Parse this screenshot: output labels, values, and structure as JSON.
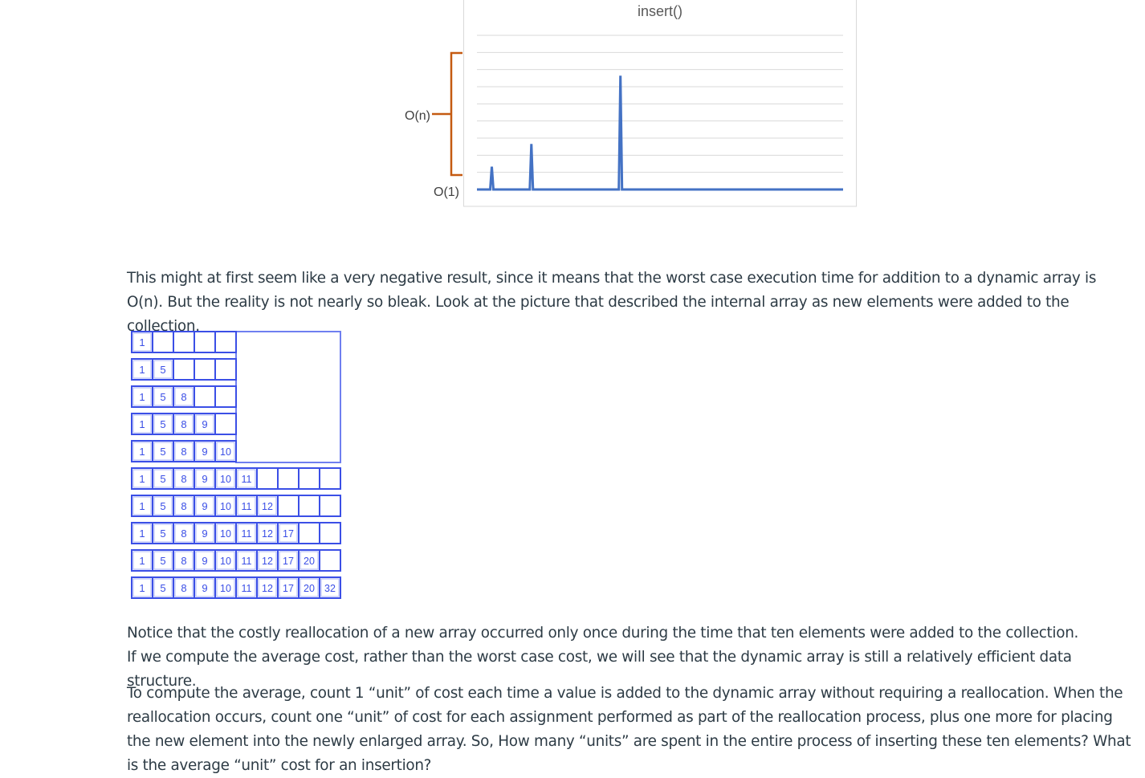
{
  "figure": {
    "chart_title": "insert()",
    "label_high": "O(n)",
    "label_low": "O(1)",
    "colors": {
      "line": "#4472c4",
      "brace": "#c55a11",
      "grid": "#d9d9d9",
      "text": "#595959"
    },
    "chart_data": {
      "type": "line",
      "title": "insert()",
      "series": [
        {
          "values": [
            1,
            1,
            1,
            2,
            1,
            1,
            1,
            1,
            1,
            1,
            1,
            3,
            1,
            1,
            1,
            1,
            1,
            1,
            1,
            1,
            1,
            1,
            1,
            1,
            1,
            1,
            1,
            1,
            1,
            6,
            1,
            1,
            1,
            1,
            1,
            1,
            1,
            1,
            1,
            1,
            1,
            1,
            1,
            1,
            1,
            1,
            1,
            1,
            1,
            1,
            1,
            1,
            1,
            1,
            1,
            1,
            1,
            1,
            1,
            1,
            1,
            1,
            1,
            1,
            1,
            1,
            1,
            1,
            1,
            1,
            1,
            1,
            1,
            1,
            1
          ]
        }
      ],
      "y_scale_labels": [
        "O(1)",
        "O(n)"
      ],
      "grid": true
    }
  },
  "paragraphs": {
    "p1": "This might at first seem like a very negative result, since it means that the worst case execution time for addition to a dynamic array is O(n). But the reality is not nearly so bleak. Look at the picture that described the internal array as new elements were added to the collection.",
    "p2": "Notice that the costly reallocation of a new array occurred only once during the time that ten elements were added to the collection. If we compute the average cost, rather than the worst case cost, we will see that the dynamic array is still a relatively efficient data structure.",
    "p3": "To compute the average, count 1 “unit” of cost each time a value is added to the dynamic array without requiring a reallocation. When the reallocation occurs, count one “unit” of cost for each assignment performed as part of the reallocation process, plus one more for placing the new element into the newly enlarged array. So, How many “units” are spent in the entire process of inserting these ten elements?  What is the average “unit” cost for an insertion?"
  },
  "array_diagram": {
    "values": [
      "1",
      "5",
      "8",
      "9",
      "10",
      "11",
      "12",
      "17",
      "20",
      "32"
    ],
    "initial_capacity": 5,
    "grown_capacity": 10,
    "colors": {
      "cell_border": "#3b4fe6",
      "cell_text": "#3b4fe6"
    }
  }
}
